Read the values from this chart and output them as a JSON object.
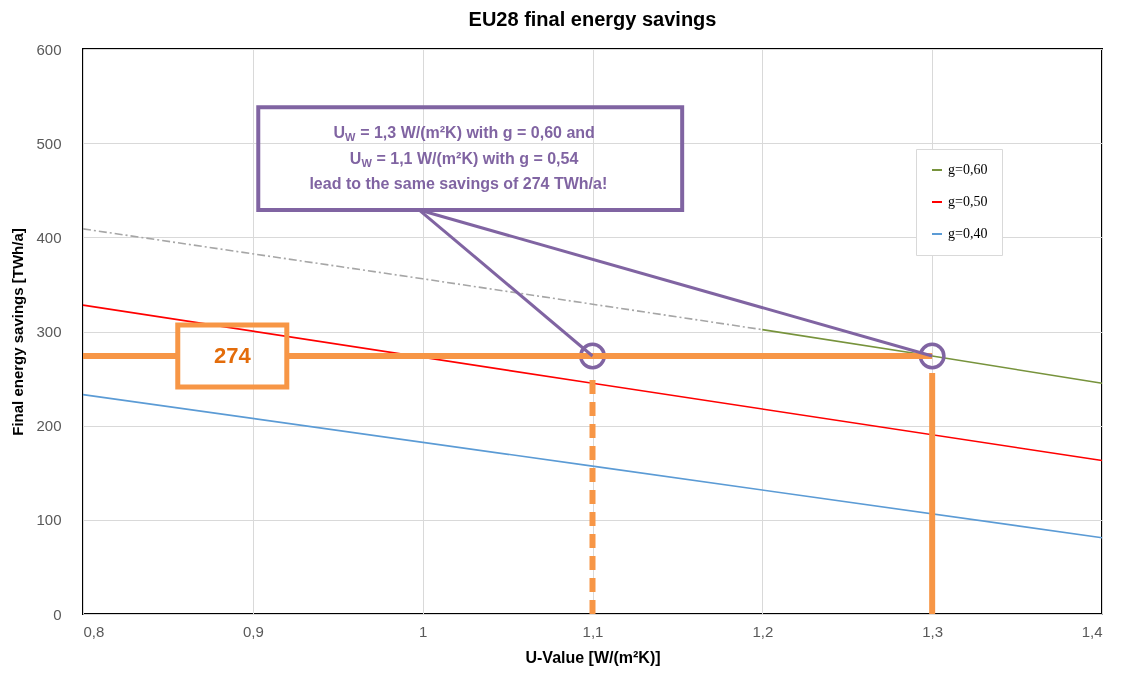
{
  "chart_data": {
    "type": "line",
    "title": "EU28 final energy savings",
    "xlabel": "U-Value [W/(m²K)]",
    "ylabel": "Final energy savings [TWh/a]",
    "xlim": [
      0.8,
      1.4
    ],
    "xticks": [
      {
        "value": 0.8,
        "label": "0,8"
      },
      {
        "value": 0.9,
        "label": "0,9"
      },
      {
        "value": 1,
        "label": "1"
      },
      {
        "value": 1.1,
        "label": "1,1"
      },
      {
        "value": 1.2,
        "label": "1,2"
      },
      {
        "value": 1.3,
        "label": "1,3"
      },
      {
        "value": 1.4,
        "label": "1,4"
      }
    ],
    "ylim": [
      0,
      600
    ],
    "yticks": [
      0,
      100,
      200,
      300,
      400,
      500,
      600
    ],
    "grid": true,
    "legend": "top right",
    "series": [
      {
        "name": "g=0,60",
        "color": "#77933c",
        "x": [
          1.2,
          1.3,
          1.4
        ],
        "values": [
          302,
          274,
          245
        ]
      },
      {
        "name": "g=0,50",
        "color": "#ff0000",
        "x": [
          0.8,
          1.1,
          1.4
        ],
        "values": [
          328,
          245,
          163
        ]
      },
      {
        "name": "g=0,40",
        "color": "#5b9bd5",
        "x": [
          0.8,
          1.1,
          1.4
        ],
        "values": [
          233,
          157,
          81
        ]
      },
      {
        "color": "#a6a6a6",
        "line_style": "dashed",
        "x": [
          0.8,
          1.0,
          1.2
        ],
        "values": [
          409,
          356,
          302
        ]
      },
      {
        "type": "scatter",
        "color": "#8064a2",
        "marker": "circle",
        "x": [
          1.1,
          1.3
        ],
        "values": [
          274,
          274
        ]
      }
    ],
    "ref_lines": [
      {
        "axis": "y",
        "value": 274,
        "label": "274",
        "color": "#f79646"
      },
      {
        "axis": "x",
        "value": 1.1,
        "color": "#f79646",
        "line_style": "dashed"
      },
      {
        "axis": "x",
        "value": 1.3,
        "color": "#f79646"
      }
    ],
    "annotations": [
      {
        "text": "U$_{W}$ = 1,3 W/(m²K) with g = 0,60 and\nU$_{W}$ = 1,1 W/(m²K) with g = 0,54\nlead to the same savings of 274 TWh/a!",
        "x": 1.1,
        "y": 274
      }
    ]
  }
}
